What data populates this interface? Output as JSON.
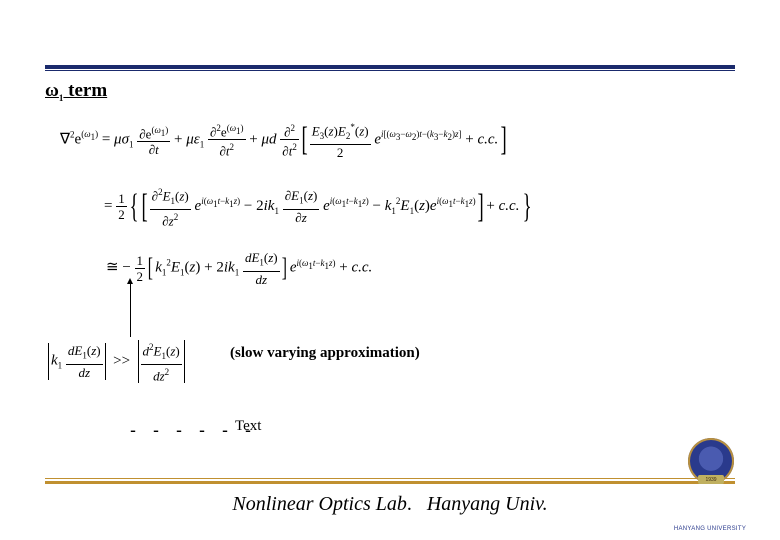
{
  "colors": {
    "rule_navy": "#1a2a6c",
    "rule_gold": "#c09030",
    "logo_inner": "#4a5bb0",
    "logo_outer": "#2a3a8c",
    "background": "#ffffff",
    "text": "#000000"
  },
  "section": {
    "title_prefix_symbol": "ω",
    "title_subscript": "1",
    "title_suffix": " term",
    "title_fontsize": 19
  },
  "equations": {
    "line1": {
      "lhs": "∇²e<sup>(ω₁)</sup>",
      "rhs_html": "= μσ₁ (∂e<sup>(ω₁)</sup>/∂t) + με₁ (∂²e<sup>(ω₁)</sup>/∂t²) + μd (∂²/∂t²) [ E₃(z)E₂*(z)/2 · e<sup>i[(ω₃−ω₂)t−(k₃−k₂)z]</sup> + c.c. ]"
    },
    "line2": {
      "rhs_html": "= ½ { [ ∂²E₁(z)/∂z² · e<sup>i(ω₁t−k₁z)</sup> − 2ik₁ ∂E₁(z)/∂z · e<sup>i(ω₁t−k₁z)</sup> − k₁² E₁(z) e<sup>i(ω₁t−k₁z)</sup> ] + c.c. }"
    },
    "line3": {
      "rhs_html": "≅ − ½ [ k₁² E₁(z) + 2ik₁ dE₁(z)/dz ] e<sup>i(ω₁t−k₁z)</sup> + c.c."
    },
    "svea": {
      "condition_html": "| k₁ dE₁(z)/dz | ≫ | d²E₁(z)/dz² |",
      "label": "(slow varying approximation)"
    }
  },
  "dash_row": {
    "dashes": "- - - - - -",
    "text_label": "Text"
  },
  "footer": {
    "lab": "Nonlinear Optics Lab",
    "dot": ".",
    "univ": "Hanyang Univ.",
    "fontsize": 20
  },
  "logo": {
    "small_text": "HANYANG UNIVERSITY",
    "ribbon_year": "1939"
  }
}
